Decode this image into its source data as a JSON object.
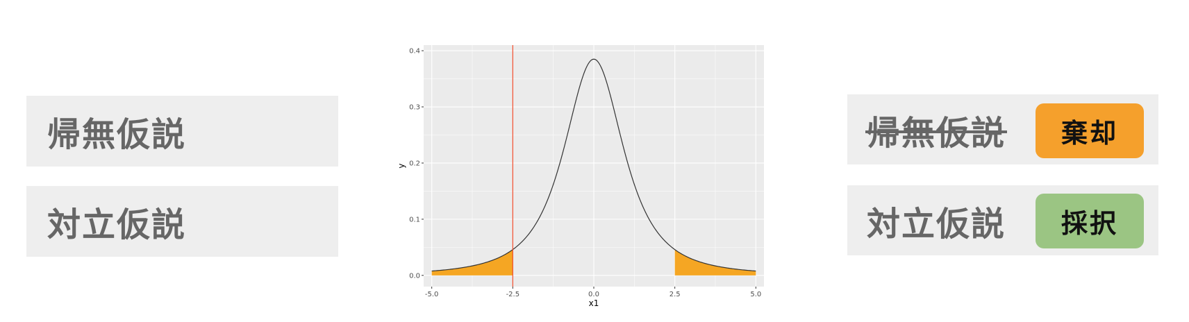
{
  "left_panel": {
    "null_hypothesis_label": "帰無仮説",
    "alt_hypothesis_label": "対立仮説"
  },
  "right_panel": {
    "null_hypothesis_label": "帰無仮説",
    "null_result": "棄却",
    "alt_hypothesis_label": "対立仮説",
    "alt_result": "採択",
    "null_struck_through": true
  },
  "colors": {
    "box_bg": "#eeeeee",
    "box_text": "#666666",
    "reject_badge": "#f5a02c",
    "accept_badge": "#9bc583",
    "panel_bg": "#ebebeb",
    "grid": "#ffffff",
    "curve": "#333333",
    "critical_line": "#f04b2a",
    "shade": "#f5a623"
  },
  "chart_data": {
    "type": "area",
    "curve": "Student t density",
    "degrees_of_freedom": 2,
    "x_range": [
      -5,
      5
    ],
    "xlim": [
      -5.25,
      5.25
    ],
    "ylim": [
      -0.02,
      0.41
    ],
    "x_ticks": [
      -5,
      -2.5,
      0,
      2.5,
      5
    ],
    "x_tick_labels": [
      "-5.0",
      "-2.5",
      "0.0",
      "2.5",
      "5.0"
    ],
    "y_ticks": [
      0,
      0.1,
      0.2,
      0.3,
      0.4
    ],
    "y_tick_labels": [
      "0.0",
      "0.1",
      "0.2",
      "0.3",
      "0.4"
    ],
    "xlabel": "x1",
    "ylabel": "y",
    "peak": {
      "x": 0,
      "y": 0.385
    },
    "shaded_regions": [
      [
        -5,
        -2.5
      ],
      [
        2.5,
        5
      ]
    ],
    "vertical_line": {
      "x": -2.5
    },
    "grid": true
  }
}
